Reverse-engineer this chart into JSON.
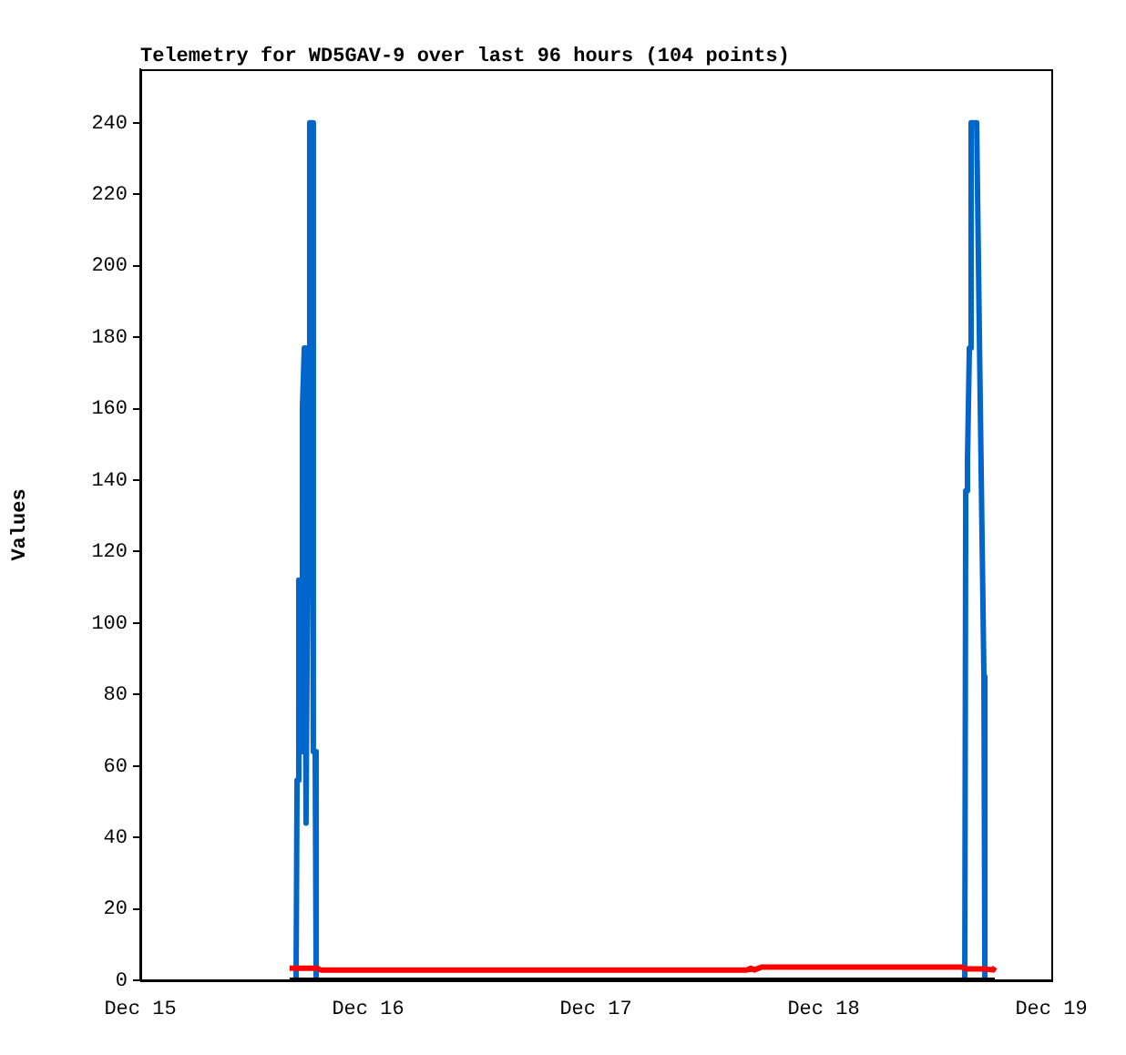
{
  "chart_data": {
    "type": "line",
    "title": "Telemetry for WD5GAV-9 over last 96 hours (104 points)",
    "ylabel": "Values",
    "xlim": [
      "--12-15",
      "--12-19"
    ],
    "xticks": [
      {
        "value": "--12-15",
        "label": "Dec 15"
      },
      {
        "value": "--12-16",
        "label": "Dec 16"
      },
      {
        "value": "--12-17",
        "label": "Dec 17"
      },
      {
        "value": "--12-18",
        "label": "Dec 18"
      },
      {
        "value": "--12-19",
        "label": "Dec 19"
      }
    ],
    "ylim": [
      0,
      255
    ],
    "yticks": [
      0,
      20,
      40,
      60,
      80,
      100,
      120,
      140,
      160,
      180,
      200,
      220,
      240
    ],
    "grid": false,
    "legend": false,
    "marker": "none",
    "line_style": "solid",
    "series": [
      {
        "color": "#000000",
        "x": [
          "--12-15T15:44",
          "--12-18T18:03"
        ],
        "values": [
          0,
          0
        ]
      },
      {
        "color": "#ff0000",
        "x": [
          "--12-15T15:44",
          "--12-15T16:31",
          "--12-15T18:37",
          "--12-15T19:00",
          "--12-17T15:56",
          "--12-17T16:20",
          "--12-17T16:42",
          "--12-17T17:28",
          "--12-18T14:35",
          "--12-18T14:59",
          "--12-18T16:54",
          "--12-18T17:52",
          "--12-18T18:03"
        ],
        "values": [
          3.4,
          3.4,
          3.4,
          2.9,
          2.9,
          3.4,
          2.9,
          3.7,
          3.7,
          3.2,
          3.2,
          2.9,
          3.7
        ]
      },
      {
        "color": "#0066cc",
        "x": [
          "--12-15T16:25",
          "--12-15T16:31",
          "--12-15T16:42",
          "--12-15T16:54",
          "--12-15T17:05",
          "--12-15T17:17",
          "--12-15T17:28",
          "--12-15T17:40",
          "--12-15T17:51",
          "--12-15T18:03",
          "--12-15T18:14",
          "--12-15T18:26",
          "--12-15T18:32",
          "--12-18T14:53",
          "--12-18T14:59",
          "--12-18T15:10",
          "--12-18T15:22",
          "--12-18T15:33",
          "--12-18T16:08",
          "--12-18T16:31",
          "--12-18T16:54",
          "--12-18T17:00"
        ],
        "values": [
          0,
          56,
          112,
          64,
          160,
          177,
          44,
          132,
          240,
          240,
          64,
          64,
          0,
          0,
          137,
          145,
          177,
          240,
          240,
          161,
          85,
          0
        ]
      }
    ]
  }
}
